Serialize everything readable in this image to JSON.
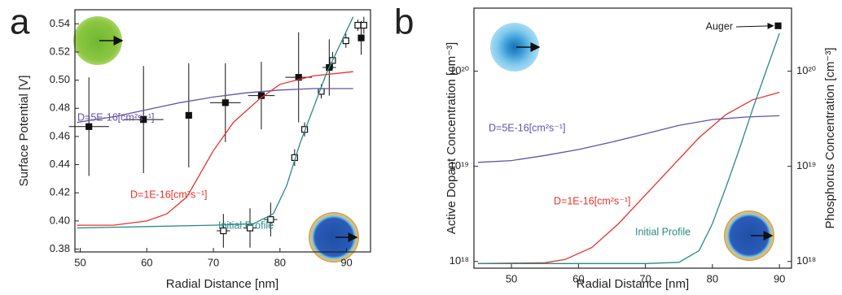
{
  "chart_data": [
    {
      "type": "scatter",
      "panel_label": "a",
      "xlabel": "Radial Distance [nm]",
      "ylabel": "Surface Potential [V]",
      "xlim": [
        49.2,
        93.6
      ],
      "ylim": [
        0.378,
        0.55
      ],
      "xticks": [
        50,
        60,
        70,
        80,
        90
      ],
      "yticks": [
        0.38,
        {
          "value": 0.4,
          "label": "0.40"
        },
        0.42,
        0.44,
        0.46,
        0.48,
        {
          "value": 0.5,
          "label": "0.50"
        },
        0.52,
        0.54
      ],
      "series": [
        {
          "color": "#111111",
          "marker": "filled-square",
          "x": [
            51.3,
            59.5,
            66.3,
            71.8,
            77.2,
            82.8,
            87.4,
            92.2
          ],
          "values": [
            0.467,
            0.472,
            0.475,
            0.484,
            0.489,
            0.502,
            0.509,
            0.53
          ],
          "xerr": [
            3,
            3,
            0,
            2.3,
            2,
            2,
            1,
            0.5
          ],
          "yerr": [
            0.035,
            0.038,
            0.037,
            0.028,
            0.024,
            0.032,
            0.02,
            0.012
          ]
        },
        {
          "color": "#111111",
          "marker": "open-square",
          "x": [
            71.5,
            75.5,
            78.6,
            82.2,
            83.7,
            86.2,
            87.9,
            89.9,
            91.7,
            92.6
          ],
          "values": [
            0.393,
            0.395,
            0.401,
            0.445,
            0.465,
            0.492,
            0.514,
            0.528,
            0.539,
            0.539
          ],
          "xerr": [
            1,
            1,
            1,
            0.5,
            0.5,
            0.5,
            0.5,
            0.5,
            0.5,
            0.5
          ],
          "yerr": [
            0.012,
            0.014,
            0.012,
            0.006,
            0.005,
            0.005,
            0.006,
            0.005,
            0.004,
            0.006
          ]
        },
        {
          "name": "D=5E-16[cm²s⁻¹]",
          "color": "#6651a8",
          "x": [
            49.5,
            55,
            60,
            65,
            70,
            75,
            80,
            85,
            91
          ],
          "values": [
            0.47,
            0.474,
            0.479,
            0.484,
            0.488,
            0.491,
            0.493,
            0.494,
            0.494
          ]
        },
        {
          "name": "D=1E-16[cm²s⁻¹]",
          "color": "#e8322a",
          "x": [
            49.5,
            55,
            60,
            63,
            66,
            70,
            73,
            77,
            80,
            85,
            91
          ],
          "values": [
            0.397,
            0.397,
            0.4,
            0.405,
            0.417,
            0.45,
            0.47,
            0.487,
            0.497,
            0.503,
            0.506
          ]
        },
        {
          "name": "Initial Profile",
          "color": "#2a8a87",
          "x": [
            49.5,
            60,
            70,
            76,
            79,
            81,
            83,
            85,
            87,
            89,
            91
          ],
          "values": [
            0.395,
            0.396,
            0.397,
            0.398,
            0.405,
            0.425,
            0.455,
            0.48,
            0.505,
            0.525,
            0.545
          ]
        }
      ]
    },
    {
      "type": "line",
      "panel_label": "b",
      "xlabel": "Radial Distance [nm]",
      "ylabel": "Active Dopant Concentration [cm⁻³]",
      "y2label": "Phosphorus Concentration [cm⁻³]",
      "log_scale": true,
      "xlim": [
        44.4,
        91.8
      ],
      "ylim": [
        8.5e+17,
        4.6e+20
      ],
      "y2lim": [
        8.5e+17,
        4.6e+20
      ],
      "xticks": [
        50,
        60,
        70,
        80,
        90
      ],
      "yticks": [
        {
          "value": 1e+18,
          "label": "10¹⁸"
        },
        {
          "value": 1e+19,
          "label": "10¹⁹"
        },
        {
          "value": 1e+20,
          "label": "10²⁰"
        }
      ],
      "y2ticks": [
        {
          "value": 1e+18,
          "label": "10¹⁸"
        },
        {
          "value": 1e+19,
          "label": "10¹⁹"
        },
        {
          "value": 1e+20,
          "label": "10²⁰"
        }
      ],
      "series": [
        {
          "name": "D=5E-16[cm²s⁻¹]",
          "color": "#6651a8",
          "x": [
            45,
            50,
            55,
            60,
            65,
            70,
            75,
            80,
            85,
            90
          ],
          "values": [
            1.1e+19,
            1.15e+19,
            1.3e+19,
            1.5e+19,
            1.8e+19,
            2.2e+19,
            2.7e+19,
            3.1e+19,
            3.3e+19,
            3.4e+19
          ]
        },
        {
          "name": "D=1E-16[cm²s⁻¹]",
          "color": "#e8322a",
          "x": [
            45,
            55,
            58,
            62,
            66,
            70,
            74,
            78,
            82,
            86,
            90
          ],
          "values": [
            9.5e+17,
            9.7e+17,
            1.05e+18,
            1.4e+18,
            2.5e+18,
            5e+18,
            1e+19,
            2e+19,
            3.5e+19,
            5e+19,
            6e+19
          ]
        },
        {
          "name": "Initial Profile",
          "color": "#2a8a87",
          "x": [
            45,
            70,
            75,
            78,
            80,
            82,
            84,
            86,
            88,
            90
          ],
          "values": [
            9.5e+17,
            9.5e+17,
            9.8e+17,
            1.3e+18,
            2.5e+18,
            6e+18,
            1.5e+19,
            4e+19,
            1e+20,
            2.5e+20
          ]
        },
        {
          "name": "Auger",
          "color": "#111111",
          "marker": "filled-square",
          "axis": "y2",
          "x": [
            89.8
          ],
          "values": [
            3e+20
          ]
        }
      ]
    }
  ]
}
